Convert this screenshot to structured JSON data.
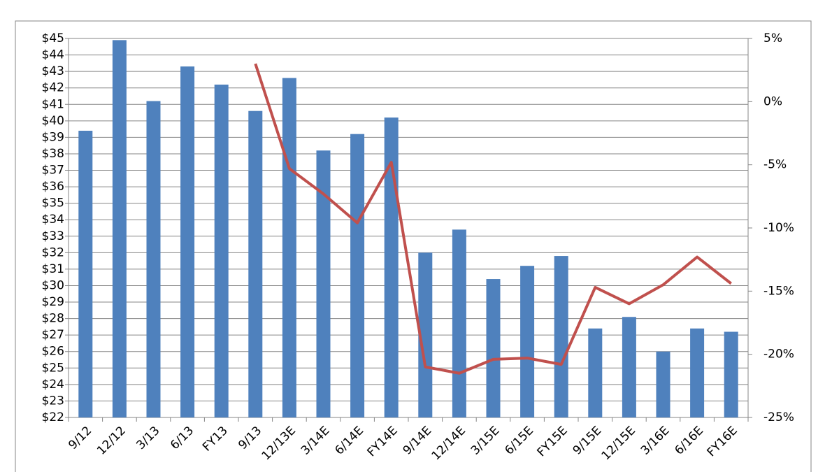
{
  "chart_data": {
    "type": "bar",
    "categories": [
      "9/12",
      "12/12",
      "3/13",
      "6/13",
      "FY13",
      "9/13",
      "12/13E",
      "3/14E",
      "6/14E",
      "FY14E",
      "9/14E",
      "12/14E",
      "3/15E",
      "6/15E",
      "FY15E",
      "9/15E",
      "12/15E",
      "3/16E",
      "6/16E",
      "FY16E"
    ],
    "series": [
      {
        "type": "bar",
        "color": "#4f81bd",
        "values": [
          39.4,
          44.9,
          41.2,
          43.3,
          42.2,
          40.6,
          42.6,
          38.2,
          39.2,
          40.2,
          32.0,
          33.4,
          30.4,
          31.2,
          31.8,
          27.4,
          28.1,
          26.0,
          27.4,
          27.2
        ]
      },
      {
        "type": "line",
        "color": "#c0504d",
        "axis": "y2",
        "values": [
          null,
          null,
          null,
          null,
          null,
          3,
          -5.3,
          -7.3,
          -9.6,
          -4.8,
          -21,
          -21.5,
          -20.4,
          -20.3,
          -20.8,
          -14.7,
          -16,
          -14.5,
          -12.3,
          -14.4
        ]
      }
    ],
    "ylim": [
      22,
      45
    ],
    "yticks": [
      {
        "value": 22,
        "label": "$22"
      },
      {
        "value": 23,
        "label": "$23"
      },
      {
        "value": 24,
        "label": "$24"
      },
      {
        "value": 25,
        "label": "$25"
      },
      {
        "value": 26,
        "label": "$26"
      },
      {
        "value": 27,
        "label": "$27"
      },
      {
        "value": 28,
        "label": "$28"
      },
      {
        "value": 29,
        "label": "$29"
      },
      {
        "value": 30,
        "label": "$30"
      },
      {
        "value": 31,
        "label": "$31"
      },
      {
        "value": 32,
        "label": "$32"
      },
      {
        "value": 33,
        "label": "$33"
      },
      {
        "value": 34,
        "label": "$34"
      },
      {
        "value": 35,
        "label": "$35"
      },
      {
        "value": 36,
        "label": "$36"
      },
      {
        "value": 37,
        "label": "$37"
      },
      {
        "value": 38,
        "label": "$38"
      },
      {
        "value": 39,
        "label": "$39"
      },
      {
        "value": 40,
        "label": "$40"
      },
      {
        "value": 41,
        "label": "$41"
      },
      {
        "value": 42,
        "label": "$42"
      },
      {
        "value": 43,
        "label": "$43"
      },
      {
        "value": 44,
        "label": "$44"
      },
      {
        "value": 45,
        "label": "$45"
      }
    ],
    "y2lim": [
      -25,
      5
    ],
    "y2ticks": [
      {
        "value": -25,
        "label": "-25%"
      },
      {
        "value": -20,
        "label": "-20%"
      },
      {
        "value": -15,
        "label": "-15%"
      },
      {
        "value": -10,
        "label": "-10%"
      },
      {
        "value": -5,
        "label": "-5%"
      },
      {
        "value": 0,
        "label": "0%"
      },
      {
        "value": 5,
        "label": "5%"
      }
    ],
    "grid": true
  }
}
